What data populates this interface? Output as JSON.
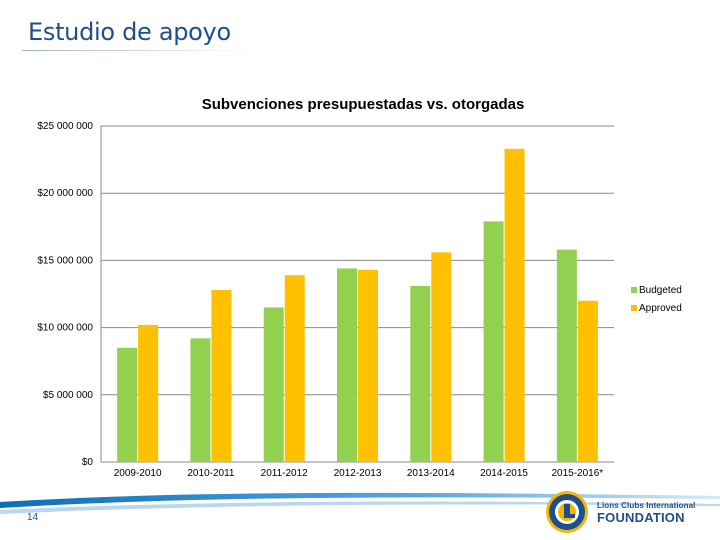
{
  "slide": {
    "title": "Estudio de apoyo",
    "page_number": "14"
  },
  "logo": {
    "line1": "Lions Clubs International",
    "line2": "FOUNDATION"
  },
  "colors": {
    "budgeted": "#92d050",
    "approved": "#ffc000",
    "title": "#1f4e8c"
  },
  "chart_data": {
    "type": "bar",
    "title": "Subvenciones presupuestadas vs. otorgadas",
    "xlabel": "",
    "ylabel": "",
    "categories": [
      "2009-2010",
      "2010-2011",
      "2011-2012",
      "2012-2013",
      "2013-2014",
      "2014-2015",
      "2015-2016*"
    ],
    "series": [
      {
        "name": "Budgeted",
        "values": [
          8500000,
          9200000,
          11500000,
          14400000,
          13100000,
          17900000,
          15800000
        ]
      },
      {
        "name": "Approved",
        "values": [
          10200000,
          12800000,
          13900000,
          14300000,
          15600000,
          23300000,
          12000000
        ]
      }
    ],
    "ylim": [
      0,
      25000000
    ],
    "y_ticks": [
      {
        "value": 0,
        "label": "$0"
      },
      {
        "value": 5000000,
        "label": "$5 000 000"
      },
      {
        "value": 10000000,
        "label": "$10 000 000"
      },
      {
        "value": 15000000,
        "label": "$15 000 000"
      },
      {
        "value": 20000000,
        "label": "$20 000 000"
      },
      {
        "value": 25000000,
        "label": "$25 000 000"
      }
    ],
    "grid": true,
    "legend_position": "right"
  }
}
